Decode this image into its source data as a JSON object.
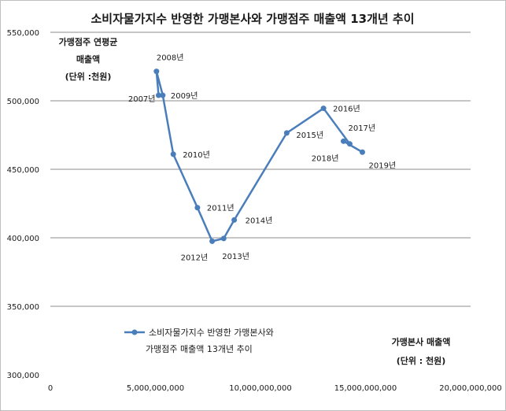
{
  "chart_data": {
    "type": "scatter",
    "title": "소비자물가지수 반영한 가맹본사와 가맹점주 매출액 13개년 추이",
    "ylabel_lines": [
      "가맹점주 연평균",
      "매출액",
      "(단위 :천원)"
    ],
    "xlabel_lines": [
      "가맹본사 매출액",
      "(단위 : 천원)"
    ],
    "xlim": [
      0,
      20000000000
    ],
    "ylim": [
      300000,
      550000
    ],
    "x_ticks": [
      0,
      5000000000,
      10000000000,
      15000000000,
      20000000000
    ],
    "x_tick_labels": [
      "0",
      "5,000,000,000",
      "10,000,000,000",
      "15,000,000,000",
      "20,000,000,000"
    ],
    "y_ticks": [
      300000,
      350000,
      400000,
      450000,
      500000,
      550000
    ],
    "y_tick_labels": [
      "300,000",
      "350,000",
      "400,000",
      "450,000",
      "500,000",
      "550,000"
    ],
    "grid": "horizontal",
    "legend": "lower-left",
    "series": [
      {
        "name": "소비자물가지수 반영한 가맹본사와 가맹점주 매출액 13개년 추이",
        "color": "#4a7ebb",
        "points": [
          {
            "label": "2007년",
            "x": 5150000000,
            "y": 504000
          },
          {
            "label": "2008년",
            "x": 5050000000,
            "y": 521500
          },
          {
            "label": "2009년",
            "x": 5350000000,
            "y": 504000
          },
          {
            "label": "2010년",
            "x": 5850000000,
            "y": 461000
          },
          {
            "label": "2011년",
            "x": 7000000000,
            "y": 422000
          },
          {
            "label": "2012년",
            "x": 7700000000,
            "y": 397500
          },
          {
            "label": "2013년",
            "x": 8250000000,
            "y": 399500
          },
          {
            "label": "2014년",
            "x": 8750000000,
            "y": 413000
          },
          {
            "label": "2015년",
            "x": 11250000000,
            "y": 476500
          },
          {
            "label": "2016년",
            "x": 13000000000,
            "y": 494500
          },
          {
            "label": "2017년",
            "x": 14250000000,
            "y": 468500
          },
          {
            "label": "2018년",
            "x": 13950000000,
            "y": 470500
          },
          {
            "label": "2019년",
            "x": 14850000000,
            "y": 462500
          }
        ]
      }
    ],
    "legend_lines": [
      "소비자물가지수 반영한 가맹본사와",
      "가맹점주 매출액 13개년 추이"
    ]
  }
}
